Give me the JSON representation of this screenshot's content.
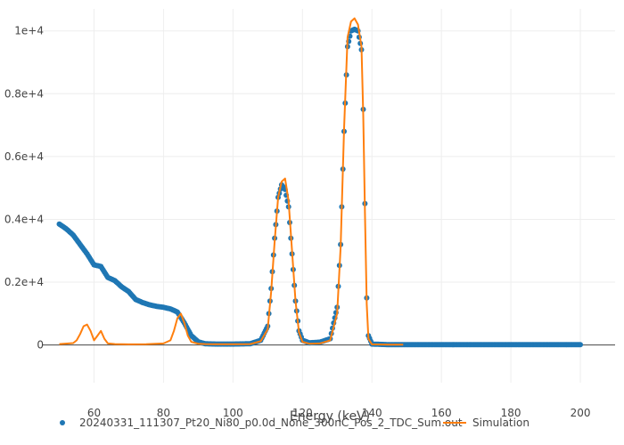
{
  "chart_data": {
    "type": "scatter",
    "title": "",
    "xlabel": "Energy (keV)",
    "ylabel": "",
    "xlim": [
      45,
      210
    ],
    "ylim": [
      -1200,
      10700
    ],
    "x_ticks": [
      60,
      80,
      100,
      120,
      140,
      160,
      180,
      200
    ],
    "x_tick_labels": [
      "60",
      "80",
      "100",
      "120",
      "140",
      "160",
      "180",
      "200"
    ],
    "y_ticks": [
      0,
      2000,
      4000,
      6000,
      8000,
      10000
    ],
    "y_tick_labels": [
      "0",
      "0.2e+4",
      "0.4e+4",
      "0.6e+4",
      "0.8e+4",
      "1e+4"
    ],
    "grid": true,
    "legend_position": "bottom",
    "series": [
      {
        "name": "20240331_111307_Pt20_Ni80_p0.0d_None_300nC_Pos_2_TDC_Sum.out",
        "mode": "markers",
        "color": "#1f77b4",
        "x": [
          50,
          52,
          54,
          56,
          58,
          60,
          62,
          64,
          66,
          68,
          70,
          72,
          74,
          76,
          78,
          80,
          82,
          84,
          86,
          88,
          90,
          92,
          95,
          100,
          105,
          108,
          110,
          111,
          112,
          113,
          114,
          115,
          116,
          117,
          118,
          119,
          120,
          122,
          125,
          128,
          130,
          131,
          132,
          133,
          134,
          135,
          136,
          137,
          137.5,
          138,
          138.5,
          139,
          140,
          145,
          150,
          160,
          170,
          180,
          190,
          200
        ],
        "y": [
          3850,
          3700,
          3500,
          3200,
          2900,
          2550,
          2500,
          2150,
          2050,
          1850,
          1700,
          1450,
          1350,
          1280,
          1230,
          1200,
          1150,
          1050,
          700,
          300,
          100,
          40,
          30,
          30,
          40,
          150,
          600,
          1800,
          3400,
          4700,
          5100,
          4950,
          4400,
          2900,
          1400,
          450,
          150,
          70,
          90,
          200,
          1200,
          3200,
          6800,
          9500,
          10000,
          10050,
          10000,
          9400,
          7500,
          4500,
          1500,
          300,
          30,
          10,
          10,
          10,
          10,
          10,
          10,
          10
        ]
      },
      {
        "name": "Simulation",
        "mode": "lines",
        "color": "#ff7f0e",
        "x": [
          50,
          54,
          55,
          56,
          57,
          58,
          59,
          60,
          61,
          62,
          63,
          64,
          66,
          70,
          75,
          80,
          82,
          83,
          84,
          85,
          86,
          87,
          88,
          90,
          92,
          95,
          100,
          105,
          108,
          110,
          111,
          112,
          113,
          114,
          115,
          116,
          117,
          118,
          119,
          120,
          122,
          125,
          128,
          130,
          131,
          132,
          133,
          134,
          135,
          136,
          137,
          137.5,
          138,
          138.5,
          139,
          140,
          145,
          149
        ],
        "y": [
          30,
          60,
          150,
          350,
          600,
          650,
          450,
          150,
          300,
          450,
          200,
          50,
          30,
          20,
          25,
          50,
          150,
          450,
          850,
          1000,
          700,
          300,
          100,
          40,
          30,
          25,
          25,
          30,
          120,
          500,
          1700,
          3300,
          4700,
          5200,
          5300,
          4600,
          3000,
          1400,
          400,
          100,
          40,
          50,
          150,
          1000,
          3100,
          6900,
          9800,
          10300,
          10400,
          10200,
          9500,
          7300,
          4200,
          1300,
          200,
          20,
          10,
          10
        ]
      }
    ]
  }
}
